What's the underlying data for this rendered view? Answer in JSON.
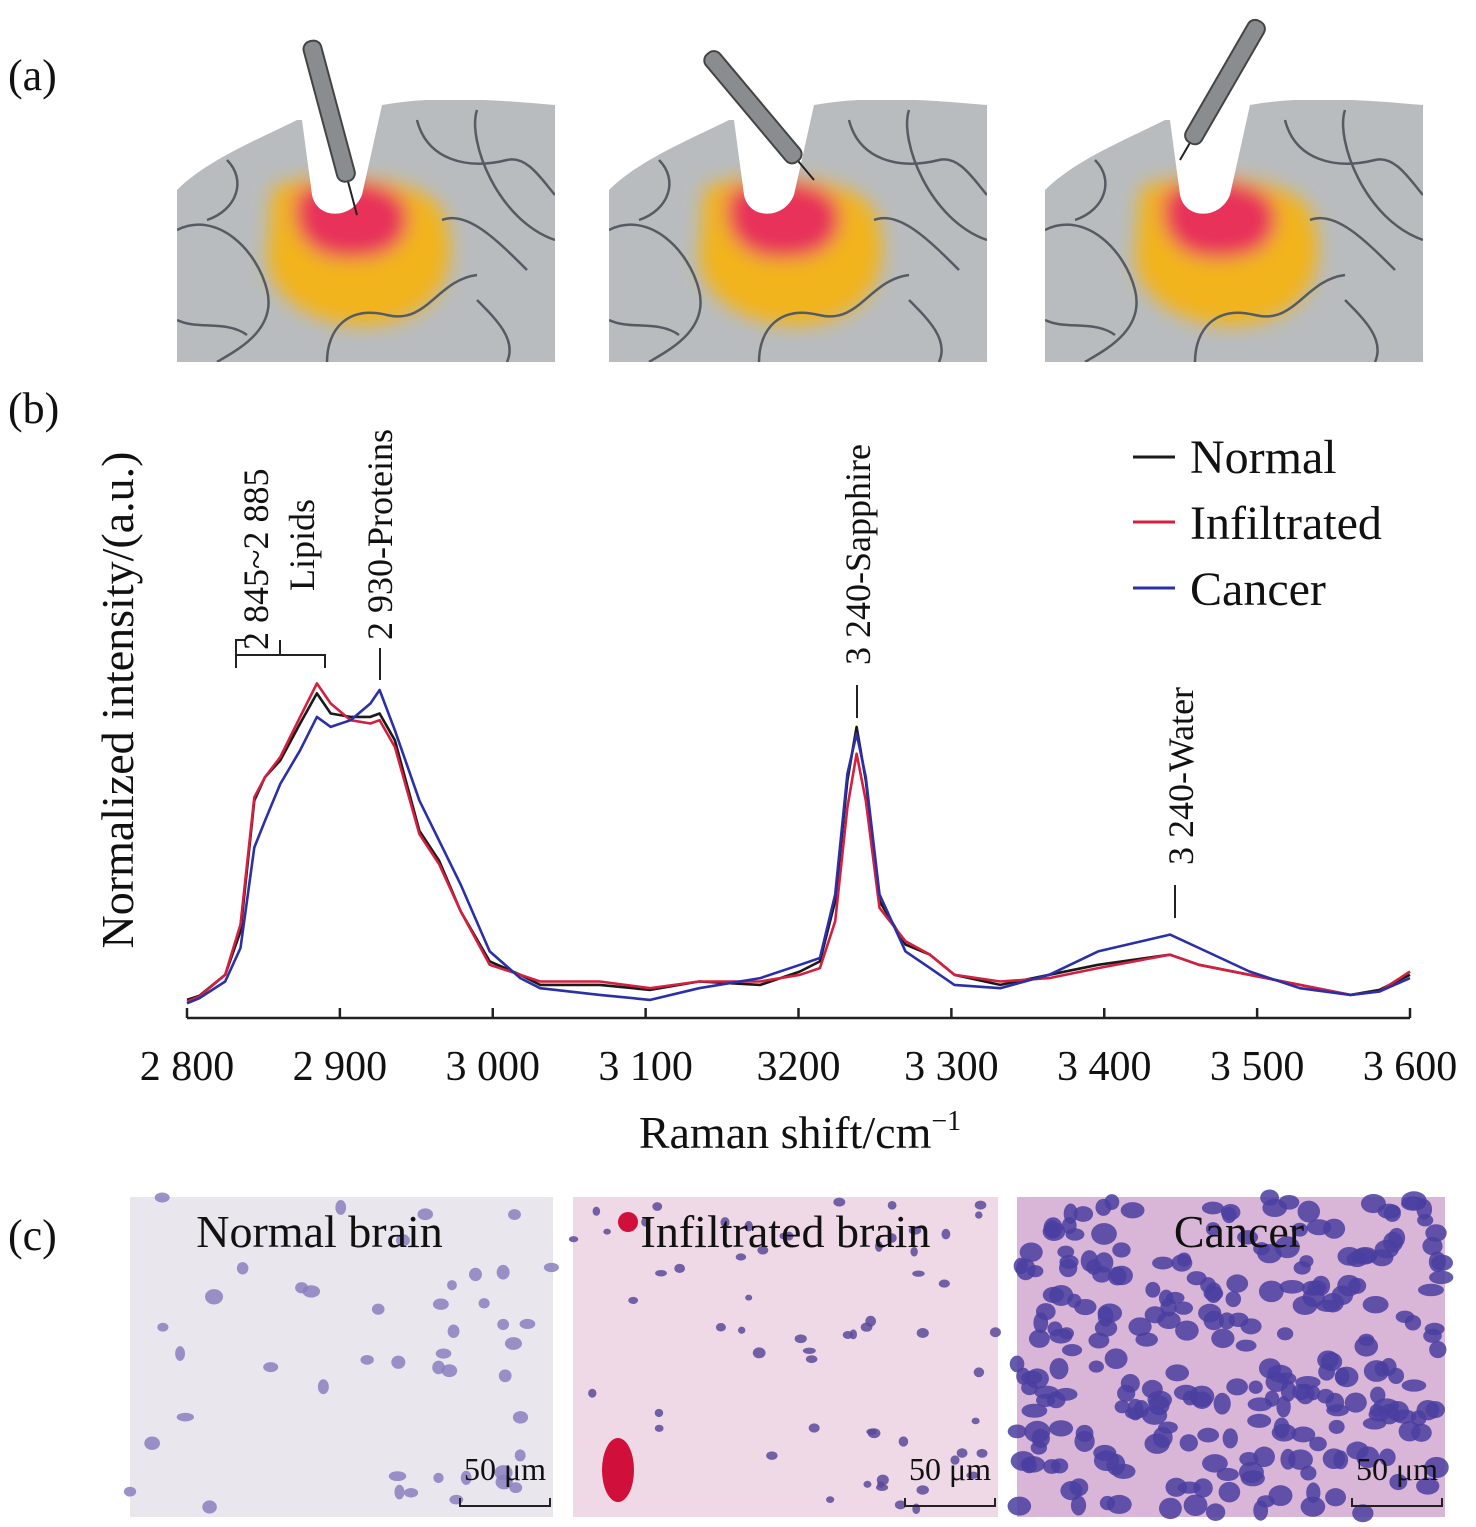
{
  "panel_labels": {
    "a": "(a)",
    "b": "(b)",
    "c": "(c)"
  },
  "histology": [
    {
      "title": "Normal brain",
      "scale": "50 μm"
    },
    {
      "title": "Infiltrated brain",
      "scale": "50 μm"
    },
    {
      "title": "Cancer",
      "scale": "50 μm"
    }
  ],
  "annotations": {
    "lipids_range": "2 845~2 885",
    "lipids": "Lipids",
    "proteins": "2 930-Proteins",
    "sapphire": "3 240-Sapphire",
    "water": "3 240-Water"
  },
  "colors": {
    "normal": "#1a1a1a",
    "infiltrated": "#d42040",
    "cancer": "#2b2fa8",
    "tissue": "#b9bcbf",
    "tumor_core": "#e8305a",
    "tumor_edge": "#f2b41e"
  },
  "chart_data": {
    "type": "line",
    "title": "",
    "xlabel": "Raman shift/cm",
    "xlabel_sup": "−1",
    "ylabel": "Normalized intensity/(a.u.)",
    "xlim": [
      2800,
      3600
    ],
    "ylim": [
      0,
      1
    ],
    "xticks": [
      2800,
      2900,
      3000,
      3100,
      3200,
      3300,
      3400,
      3500,
      3600
    ],
    "xtick_labels": [
      "2 800",
      "2 900",
      "3 000",
      "3 100",
      "3200",
      "3 300",
      "3 400",
      "3 500",
      "3 600"
    ],
    "legend_position": "top-right",
    "series": [
      {
        "name": "Normal",
        "color": "#1a1a1a",
        "x": [
          2800,
          2808,
          2825,
          2835,
          2844,
          2851,
          2861,
          2874,
          2885,
          2894,
          2907,
          2920,
          2926,
          2936,
          2952,
          2965,
          2979,
          2998,
          3018,
          3031,
          3070,
          3103,
          3135,
          3175,
          3201,
          3214,
          3224,
          3232,
          3238,
          3244,
          3253,
          3270,
          3286,
          3302,
          3332,
          3364,
          3396,
          3443,
          3462,
          3495,
          3528,
          3561,
          3580,
          3600
        ],
        "y": [
          0.045,
          0.057,
          0.12,
          0.25,
          0.64,
          0.71,
          0.76,
          0.87,
          0.96,
          0.9,
          0.89,
          0.89,
          0.9,
          0.82,
          0.55,
          0.46,
          0.31,
          0.16,
          0.12,
          0.09,
          0.09,
          0.075,
          0.1,
          0.09,
          0.13,
          0.16,
          0.34,
          0.7,
          0.86,
          0.7,
          0.34,
          0.21,
          0.18,
          0.12,
          0.09,
          0.12,
          0.15,
          0.18,
          0.15,
          0.12,
          0.09,
          0.06,
          0.075,
          0.12
        ]
      },
      {
        "name": "Infiltrated",
        "color": "#d42040",
        "x": [
          2800,
          2808,
          2825,
          2835,
          2844,
          2851,
          2861,
          2874,
          2885,
          2894,
          2907,
          2920,
          2926,
          2936,
          2952,
          2965,
          2979,
          2998,
          3018,
          3031,
          3070,
          3103,
          3135,
          3175,
          3201,
          3214,
          3224,
          3232,
          3238,
          3244,
          3253,
          3270,
          3286,
          3302,
          3332,
          3364,
          3396,
          3443,
          3462,
          3495,
          3528,
          3561,
          3580,
          3600
        ],
        "y": [
          0.04,
          0.055,
          0.12,
          0.27,
          0.65,
          0.71,
          0.77,
          0.89,
          0.99,
          0.93,
          0.88,
          0.87,
          0.88,
          0.8,
          0.54,
          0.45,
          0.31,
          0.15,
          0.12,
          0.1,
          0.1,
          0.08,
          0.1,
          0.1,
          0.12,
          0.14,
          0.28,
          0.62,
          0.78,
          0.64,
          0.32,
          0.22,
          0.18,
          0.12,
          0.1,
          0.11,
          0.14,
          0.18,
          0.15,
          0.12,
          0.09,
          0.06,
          0.07,
          0.13
        ]
      },
      {
        "name": "Cancer",
        "color": "#2b2fa8",
        "x": [
          2800,
          2808,
          2825,
          2835,
          2844,
          2851,
          2861,
          2874,
          2885,
          2894,
          2907,
          2920,
          2926,
          2936,
          2952,
          2965,
          2979,
          2998,
          3018,
          3031,
          3070,
          3103,
          3135,
          3175,
          3201,
          3214,
          3224,
          3232,
          3238,
          3244,
          3253,
          3270,
          3286,
          3302,
          3332,
          3364,
          3396,
          3443,
          3462,
          3495,
          3528,
          3561,
          3580,
          3600
        ],
        "y": [
          0.035,
          0.05,
          0.1,
          0.2,
          0.5,
          0.58,
          0.69,
          0.79,
          0.89,
          0.86,
          0.88,
          0.93,
          0.97,
          0.85,
          0.64,
          0.52,
          0.39,
          0.19,
          0.11,
          0.08,
          0.06,
          0.045,
          0.08,
          0.11,
          0.15,
          0.17,
          0.36,
          0.72,
          0.84,
          0.71,
          0.36,
          0.19,
          0.14,
          0.09,
          0.08,
          0.12,
          0.19,
          0.24,
          0.2,
          0.13,
          0.08,
          0.06,
          0.07,
          0.11
        ]
      }
    ]
  }
}
